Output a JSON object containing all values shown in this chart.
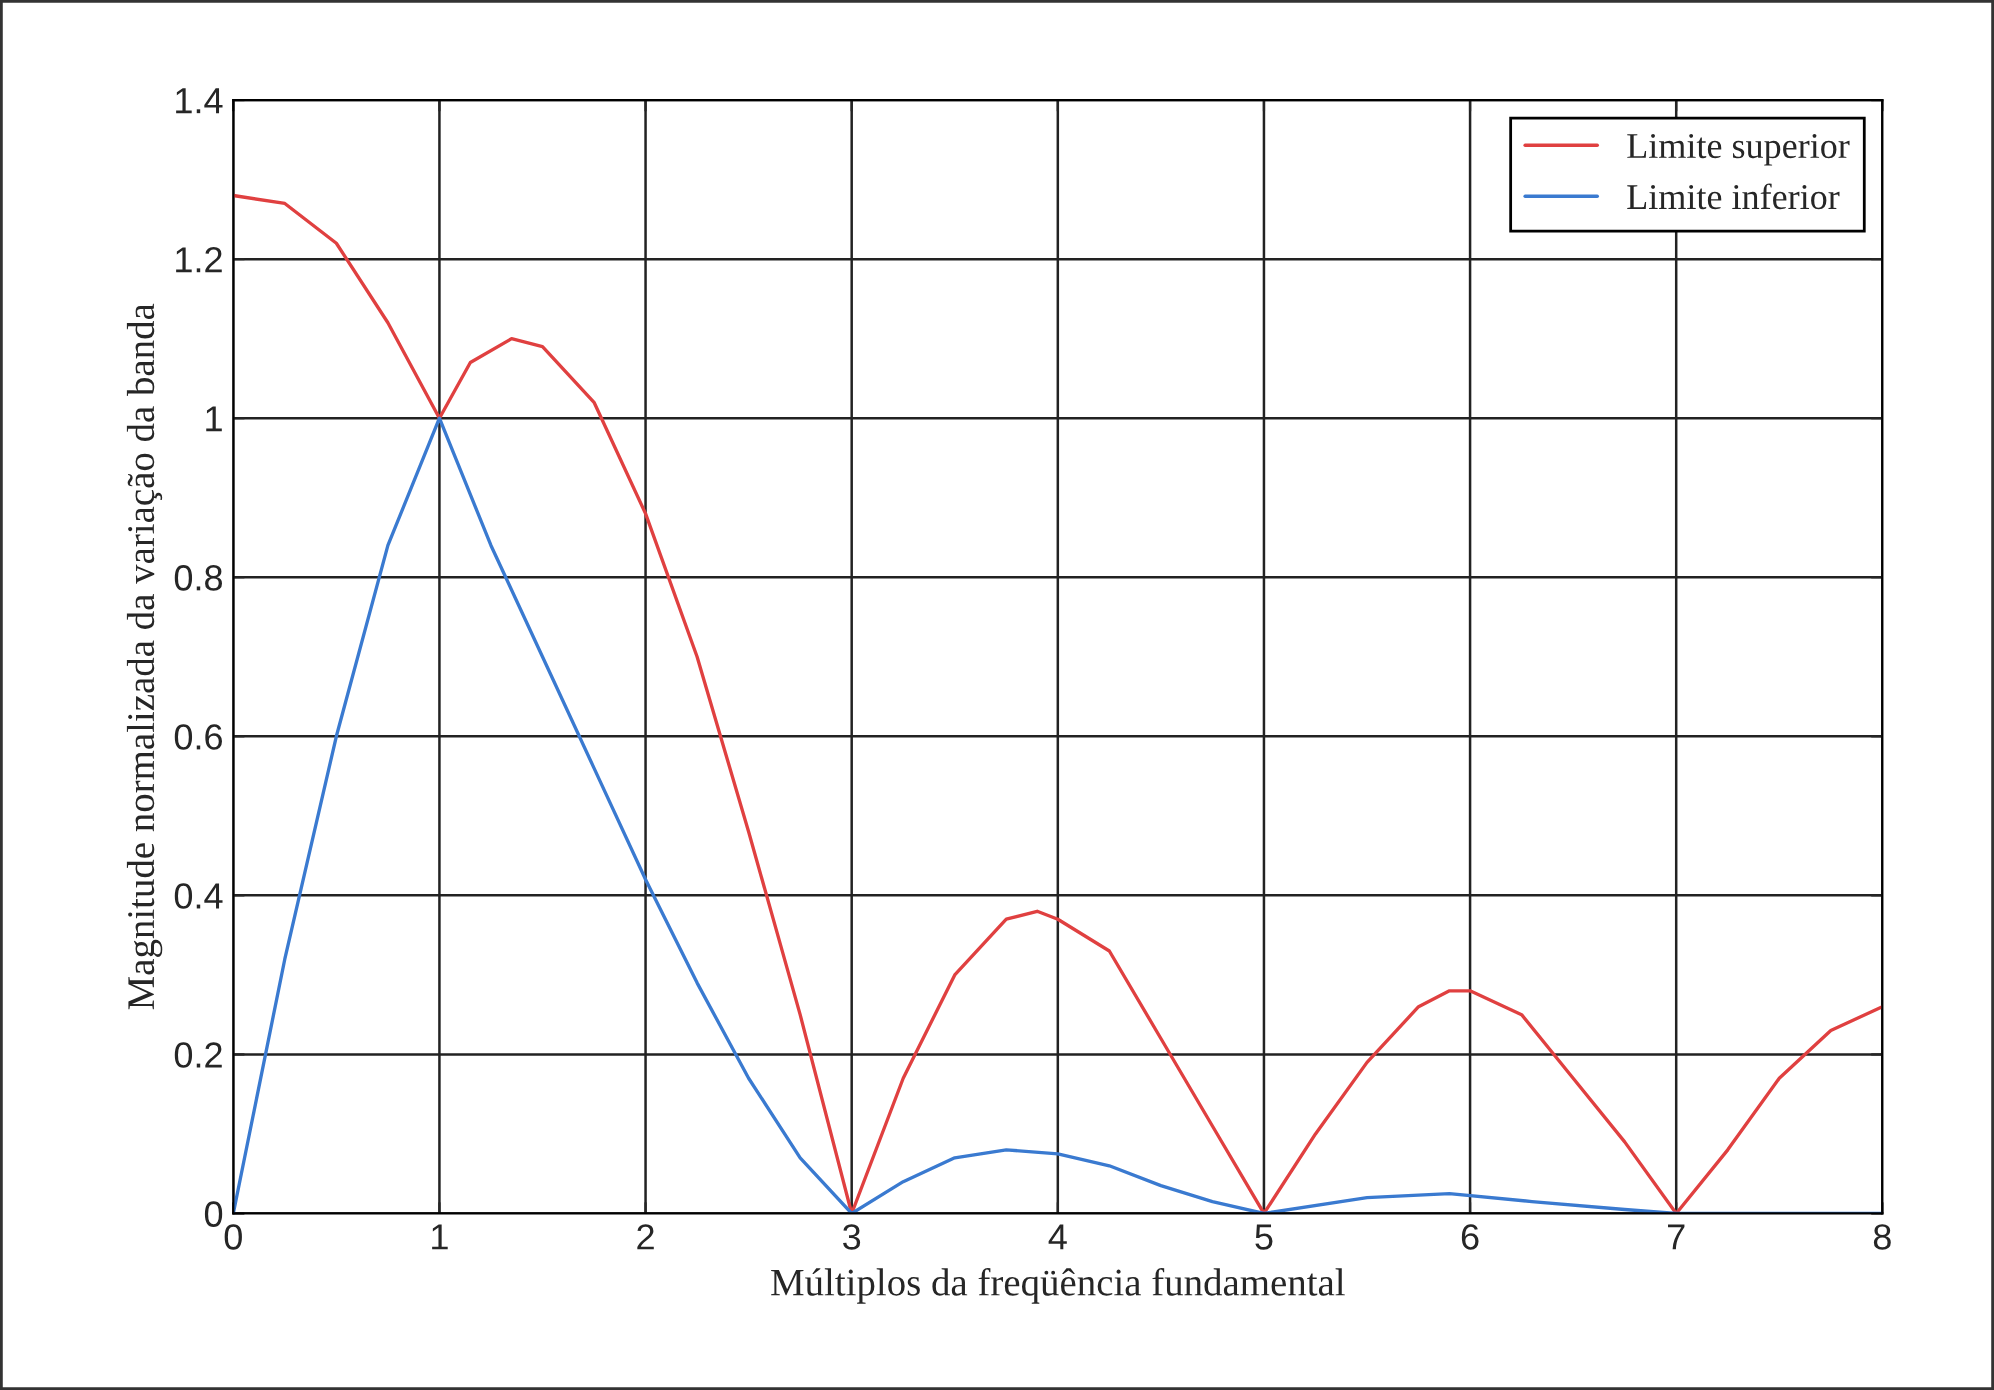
{
  "chart_data": {
    "type": "line",
    "xlabel": "Múltiplos da freqüência fundamental",
    "ylabel": "Magnitude normalizada da variação da banda",
    "series": [
      {
        "name": "Limite superior",
        "color": "#e04040",
        "x": [
          0,
          0.25,
          0.5,
          0.75,
          1,
          1.15,
          1.35,
          1.5,
          1.75,
          2,
          2.25,
          2.5,
          2.75,
          3,
          3.25,
          3.5,
          3.75,
          3.9,
          4,
          4.25,
          4.5,
          4.75,
          5,
          5.25,
          5.5,
          5.75,
          5.9,
          6,
          6.25,
          6.5,
          6.75,
          7,
          7.25,
          7.5,
          7.75,
          8
        ],
        "values": [
          1.28,
          1.27,
          1.22,
          1.12,
          1.0,
          1.07,
          1.1,
          1.09,
          1.02,
          0.88,
          0.7,
          0.48,
          0.25,
          0,
          0.17,
          0.3,
          0.37,
          0.38,
          0.37,
          0.33,
          0.22,
          0.11,
          0,
          0.1,
          0.19,
          0.26,
          0.28,
          0.28,
          0.25,
          0.17,
          0.09,
          0,
          0.08,
          0.17,
          0.23,
          0.26
        ]
      },
      {
        "name": "Limite inferior",
        "color": "#3a7ad0",
        "x": [
          0,
          0.25,
          0.5,
          0.75,
          1,
          1.25,
          1.5,
          1.75,
          2,
          2.25,
          2.5,
          2.75,
          3,
          3.25,
          3.5,
          3.75,
          4,
          4.25,
          4.5,
          4.75,
          5,
          5.5,
          5.9,
          6.3,
          6.75,
          7,
          8
        ],
        "values": [
          0,
          0.32,
          0.6,
          0.84,
          1.0,
          0.84,
          0.7,
          0.56,
          0.42,
          0.29,
          0.17,
          0.07,
          0,
          0.04,
          0.07,
          0.08,
          0.075,
          0.06,
          0.035,
          0.015,
          0,
          0.02,
          0.025,
          0.015,
          0.005,
          0,
          0
        ]
      }
    ],
    "xlim": [
      0,
      8
    ],
    "xticks": [
      0,
      1,
      2,
      3,
      4,
      5,
      6,
      7,
      8
    ],
    "ylim": [
      0,
      1.4
    ],
    "yticks": [
      0,
      0.2,
      0.4,
      0.6,
      0.8,
      1,
      1.2,
      1.4
    ],
    "grid": true,
    "legend": "top right"
  }
}
